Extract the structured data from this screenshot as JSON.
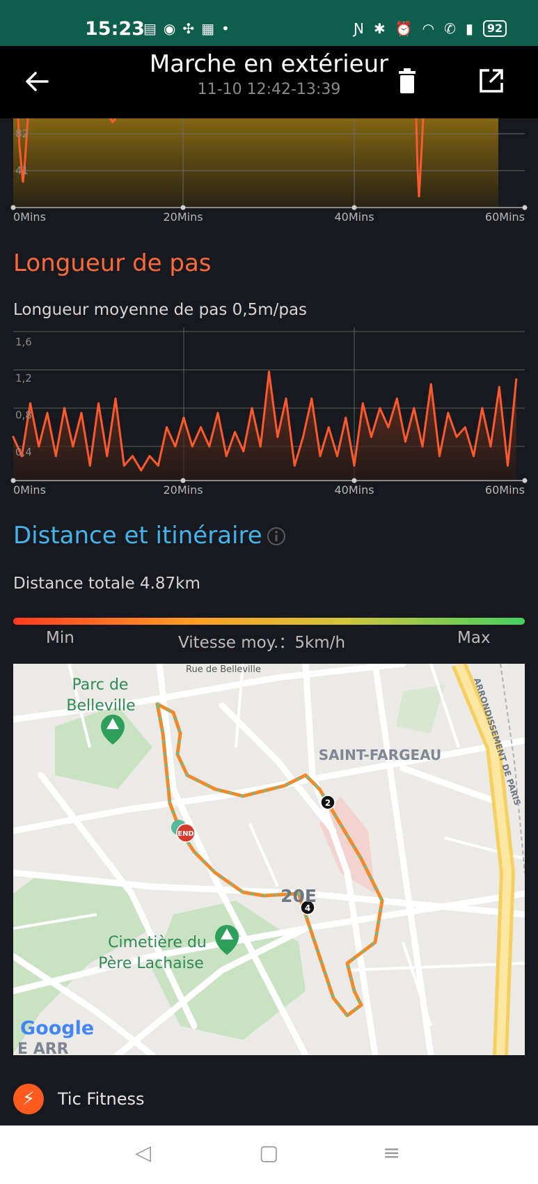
{
  "status": {
    "time": "15:23",
    "left_icons": [
      "message-icon",
      "messenger-icon",
      "slack-icon",
      "qr-icon",
      "dot-icon"
    ],
    "battery": "92"
  },
  "header": {
    "title": "Marche en extérieur",
    "subtitle": "11-10 12:42-13:39"
  },
  "top_chart": {
    "y_ticks": [
      "82",
      "41"
    ],
    "x_ticks": [
      "0Mins",
      "20Mins",
      "40Mins",
      "60Mins"
    ]
  },
  "stride": {
    "section_title": "Longueur de pas",
    "avg_label": "Longueur moyenne de pas 0,5m/pas",
    "y_ticks": [
      "1,6",
      "1,2",
      "0,8",
      "0,4"
    ],
    "x_ticks": [
      "0Mins",
      "20Mins",
      "40Mins",
      "60Mins"
    ]
  },
  "chart_data": {
    "type": "area",
    "xlabel": "",
    "ylabel": "",
    "x_range": [
      0,
      60
    ],
    "ylim": [
      0,
      1.6
    ],
    "grid": true,
    "x": [
      0,
      1,
      2,
      3,
      4,
      5,
      6,
      7,
      8,
      9,
      10,
      11,
      12,
      13,
      14,
      15,
      16,
      17,
      18,
      19,
      20,
      21,
      22,
      23,
      24,
      25,
      26,
      27,
      28,
      29,
      30,
      31,
      32,
      33,
      34,
      35,
      36,
      37,
      38,
      39,
      40,
      41,
      42,
      43,
      44,
      45,
      46,
      47,
      48,
      49,
      50,
      51,
      52,
      53,
      54,
      55,
      56,
      57,
      58,
      59
    ],
    "series": [
      {
        "values": [
          0.5,
          0.3,
          0.85,
          0.4,
          0.75,
          0.3,
          0.8,
          0.4,
          0.75,
          0.2,
          0.85,
          0.3,
          0.9,
          0.2,
          0.3,
          0.15,
          0.3,
          0.2,
          0.6,
          0.4,
          0.7,
          0.4,
          0.6,
          0.4,
          0.75,
          0.3,
          0.55,
          0.35,
          0.8,
          0.4,
          1.18,
          0.5,
          0.9,
          0.2,
          0.5,
          0.9,
          0.3,
          0.6,
          0.3,
          0.7,
          0.2,
          0.85,
          0.5,
          0.8,
          0.6,
          0.9,
          0.45,
          0.8,
          0.4,
          1.05,
          0.3,
          0.75,
          0.5,
          0.6,
          0.3,
          0.8,
          0.4,
          1.02,
          0.2,
          1.1
        ]
      }
    ]
  },
  "distance": {
    "section_title": "Distance et itinéraire",
    "total_label": "Distance totale 4.87km",
    "min_label": "Min",
    "avg_speed_label": "Vitesse moy.：5km/h",
    "max_label": "Max"
  },
  "map": {
    "street_label": "Rue de Belleville",
    "park_label_line1": "Parc de",
    "park_label_line2": "Belleville",
    "district_label": "SAINT-FARGEAU",
    "arrondissement_label": "20E",
    "cemetery_line1": "Cimetière du",
    "cemetery_line2": "Père Lachaise",
    "edge_label": "ARRONDISSEMENT DE PARIS",
    "end_marker": "END",
    "km_markers": [
      "2",
      "4"
    ],
    "google_logo": "Google",
    "corner_text": "E ARR"
  },
  "brand": {
    "name": "Tic Fitness"
  },
  "colors": {
    "stride_line": "#ff5a2e",
    "hr_line": "#ff5a2e",
    "distance_title": "#46b4ec",
    "route_orange": "#f08a2a",
    "route_green": "#6bbf8a"
  }
}
